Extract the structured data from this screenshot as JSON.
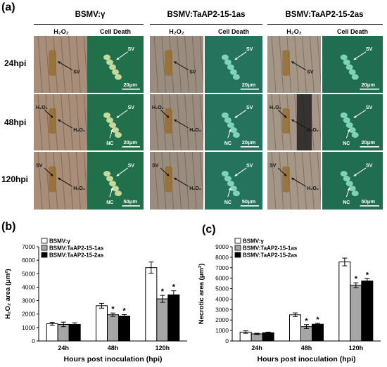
{
  "figure": {
    "panel_a": "(a)",
    "panel_b": "(b)",
    "panel_c": "(c)",
    "groups": [
      "BSMV:γ",
      "BSMV:TaAP2-15-1as",
      "BSMV:TaAP2-15-2as"
    ],
    "sub_labels": {
      "h2o2": "H₂O₂",
      "death": "Cell Death"
    },
    "rows": [
      "24hpi",
      "48hpi",
      "120hpi"
    ],
    "scale_bars": {
      "small": "20μm",
      "large": "50μm"
    },
    "annotations": {
      "sv": "SV",
      "nc": "NC",
      "h2o2": "H₂O₂"
    }
  },
  "chart_data": [
    {
      "type": "bar",
      "title": "",
      "categories": [
        "24h",
        "48h",
        "120h"
      ],
      "series": [
        {
          "name": "BSMV:γ",
          "values": [
            1280,
            2620,
            5450
          ],
          "errors": [
            100,
            180,
            420
          ],
          "color": "#ffffff"
        },
        {
          "name": "BSMV:TaAP2-15-1as",
          "values": [
            1230,
            1950,
            3130
          ],
          "errors": [
            170,
            130,
            260
          ],
          "color": "#a6a6a6"
        },
        {
          "name": "BSMV:TaAP2-15-2as",
          "values": [
            1230,
            1850,
            3430
          ],
          "errors": [
            120,
            110,
            300
          ],
          "color": "#000000"
        }
      ],
      "significance": [
        [
          false,
          false,
          false
        ],
        [
          false,
          true,
          true
        ],
        [
          false,
          true,
          true
        ]
      ],
      "sig_mark": "*",
      "xlabel": "Hours post inoculation (hpi)",
      "ylabel": "H₂O₂ area (μm²)",
      "ylim": [
        0,
        7000
      ],
      "yticks": [
        0,
        1000,
        2000,
        3000,
        4000,
        5000,
        6000,
        7000
      ],
      "legend": "top-left",
      "grid": false
    },
    {
      "type": "bar",
      "title": "",
      "categories": [
        "24h",
        "48h",
        "120h"
      ],
      "series": [
        {
          "name": "BSMV:γ",
          "values": [
            850,
            2500,
            7550
          ],
          "errors": [
            120,
            180,
            370
          ],
          "color": "#ffffff"
        },
        {
          "name": "BSMV:TaAP2-15-1as",
          "values": [
            680,
            1370,
            5330
          ],
          "errors": [
            60,
            190,
            230
          ],
          "color": "#a6a6a6"
        },
        {
          "name": "BSMV:TaAP2-15-2as",
          "values": [
            790,
            1600,
            5730
          ],
          "errors": [
            60,
            90,
            230
          ],
          "color": "#000000"
        }
      ],
      "significance": [
        [
          false,
          false,
          false
        ],
        [
          false,
          true,
          true
        ],
        [
          false,
          true,
          true
        ]
      ],
      "sig_mark": "*",
      "xlabel": "Hours post inoculation (hpi)",
      "ylabel": "Necrotic area (μm²)",
      "ylim": [
        0,
        9000
      ],
      "yticks": [
        0,
        1000,
        2000,
        3000,
        4000,
        5000,
        6000,
        7000,
        8000,
        9000
      ],
      "legend": "top-left",
      "grid": false
    }
  ]
}
